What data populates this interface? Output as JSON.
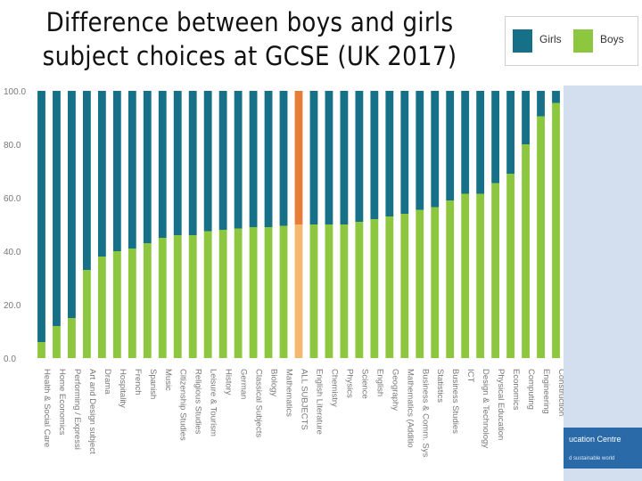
{
  "title_line1": "Difference between boys and girls",
  "title_line2": "subject choices at GCSE (UK 2017)",
  "logo": {
    "line1": "ucation Centre",
    "line2": "d sustainable world"
  },
  "colors": {
    "girls": "#157088",
    "boys": "#8dc63f",
    "all_girls": "#e67e3a",
    "all_boys": "#f5b870"
  },
  "chart_data": {
    "type": "bar",
    "stacked": true,
    "title": "Difference between boys and girls subject choices at GCSE (UK 2017)",
    "legend": {
      "position": "top-right",
      "entries": [
        "Girls",
        "Boys"
      ]
    },
    "ylim": [
      0,
      100
    ],
    "yticks": [
      "100.0",
      "80.0",
      "60.0",
      "40.0",
      "20.0",
      "0.0"
    ],
    "categories": [
      "Health & Social Care",
      "Home Economics",
      "Performing / Expressi",
      "Art and Design subject",
      "Drama",
      "Hospitality",
      "French",
      "Spanish",
      "Music",
      "Citizenship Studies",
      "Religious Studies",
      "Leisure & Tourism",
      "History",
      "German",
      "Classical Subjects",
      "Biology",
      "Mathematics",
      "ALL SUBJECTS",
      "English Literature",
      "Chemistry",
      "Physics",
      "Science",
      "English",
      "Geography",
      "Mathematics (Additio",
      "Business & Comm. Sys",
      "Statistics",
      "Business Studies",
      "ICT",
      "Design & Technology",
      "Physical Education",
      "Economics",
      "Computing",
      "Engineering",
      "Construction"
    ],
    "series": [
      {
        "name": "Boys",
        "values": [
          6,
          12,
          15,
          33,
          38,
          40,
          41,
          43,
          45,
          46,
          46,
          47.5,
          48,
          48.5,
          49,
          49,
          49.5,
          50,
          50,
          50,
          50,
          51,
          52,
          53,
          54,
          55.5,
          56.5,
          59,
          61.5,
          61.5,
          65.5,
          69,
          80,
          90.5,
          95.5
        ]
      },
      {
        "name": "Girls",
        "values": [
          94,
          88,
          85,
          67,
          62,
          60,
          59,
          57,
          55,
          54,
          54,
          52.5,
          52,
          51.5,
          51,
          51,
          50.5,
          50,
          50,
          50,
          50,
          49,
          48,
          47,
          46,
          44.5,
          43.5,
          41,
          38.5,
          38.5,
          34.5,
          31,
          20,
          9.5,
          4.5
        ]
      }
    ],
    "highlight_category": "ALL SUBJECTS",
    "grid": false
  }
}
